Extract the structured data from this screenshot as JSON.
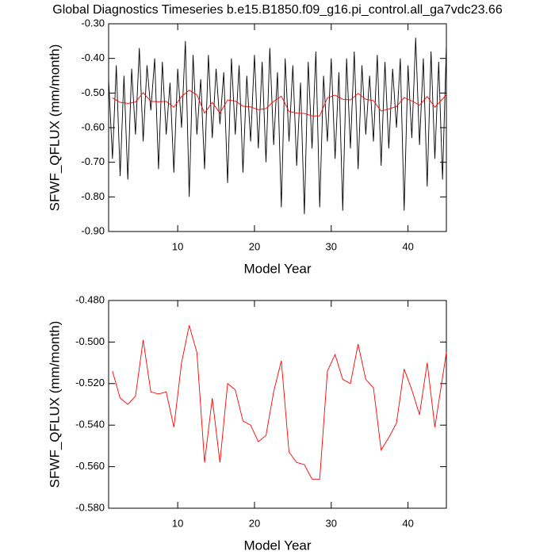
{
  "chart_data": [
    {
      "type": "line",
      "title": "Global Diagnostics Timeseries b.e15.B1850.f09_g16.pi_control.all_ga7vdc23.66",
      "x_label": "Model Year",
      "y_label": "SFWF_QFLUX (mm/month)",
      "xlim": [
        1,
        45
      ],
      "xticks": [
        10,
        20,
        30,
        40
      ],
      "ylim": [
        -0.9,
        -0.3
      ],
      "yticks": [
        {
          "value": -0.9,
          "label": "-0.90"
        },
        {
          "value": -0.8,
          "label": "-0.80"
        },
        {
          "value": -0.7,
          "label": "-0.70"
        },
        {
          "value": -0.6,
          "label": "-0.60"
        },
        {
          "value": -0.5,
          "label": "-0.50"
        },
        {
          "value": -0.4,
          "label": "-0.40"
        },
        {
          "value": -0.3,
          "label": "-0.30"
        }
      ],
      "series": [
        {
          "color": "#000000",
          "x": [
            1,
            1.5,
            2,
            2.5,
            3,
            3.5,
            4,
            4.5,
            5,
            5.5,
            6,
            6.5,
            7,
            7.5,
            8,
            8.5,
            9,
            9.5,
            10,
            10.5,
            11,
            11.5,
            12,
            12.5,
            13,
            13.5,
            14,
            14.5,
            15,
            15.5,
            16,
            16.5,
            17,
            17.5,
            18,
            18.5,
            19,
            19.5,
            20,
            20.5,
            21,
            21.5,
            22,
            22.5,
            23,
            23.5,
            24,
            24.5,
            25,
            25.5,
            26,
            26.5,
            27,
            27.5,
            28,
            28.5,
            29,
            29.5,
            30,
            30.5,
            31,
            31.5,
            32,
            32.5,
            33,
            33.5,
            34,
            34.5,
            35,
            35.5,
            36,
            36.5,
            37,
            37.5,
            38,
            38.5,
            39,
            39.5,
            40,
            40.5,
            41,
            41.5,
            42,
            42.5,
            43,
            43.5,
            44,
            44.5,
            45
          ],
          "values": [
            -0.46,
            -0.69,
            -0.42,
            -0.74,
            -0.45,
            -0.75,
            -0.43,
            -0.62,
            -0.37,
            -0.64,
            -0.42,
            -0.55,
            -0.4,
            -0.72,
            -0.41,
            -0.62,
            -0.47,
            -0.73,
            -0.43,
            -0.6,
            -0.35,
            -0.8,
            -0.39,
            -0.62,
            -0.46,
            -0.72,
            -0.39,
            -0.63,
            -0.43,
            -0.59,
            -0.44,
            -0.76,
            -0.4,
            -0.62,
            -0.42,
            -0.73,
            -0.45,
            -0.64,
            -0.39,
            -0.66,
            -0.41,
            -0.7,
            -0.37,
            -0.65,
            -0.44,
            -0.83,
            -0.4,
            -0.64,
            -0.42,
            -0.71,
            -0.47,
            -0.85,
            -0.41,
            -0.66,
            -0.38,
            -0.83,
            -0.45,
            -0.64,
            -0.4,
            -0.69,
            -0.44,
            -0.84,
            -0.4,
            -0.66,
            -0.38,
            -0.72,
            -0.42,
            -0.62,
            -0.45,
            -0.64,
            -0.39,
            -0.71,
            -0.41,
            -0.66,
            -0.43,
            -0.6,
            -0.4,
            -0.84,
            -0.42,
            -0.63,
            -0.34,
            -0.65,
            -0.4,
            -0.77,
            -0.38,
            -0.69,
            -0.41,
            -0.75,
            -0.36
          ]
        },
        {
          "color": "#ff0000",
          "x": [
            1.5,
            2.5,
            3.5,
            4.5,
            5.5,
            6.5,
            7.5,
            8.5,
            9.5,
            10.5,
            11.5,
            12.5,
            13.5,
            14.5,
            15.5,
            16.5,
            17.5,
            18.5,
            19.5,
            20.5,
            21.5,
            22.5,
            23.5,
            24.5,
            25.5,
            26.5,
            27.5,
            28.5,
            29.5,
            30.5,
            31.5,
            32.5,
            33.5,
            34.5,
            35.5,
            36.5,
            37.5,
            38.5,
            39.5,
            40.5,
            41.5,
            42.5,
            43.5,
            45
          ],
          "values": [
            -0.514,
            -0.527,
            -0.53,
            -0.526,
            -0.499,
            -0.524,
            -0.525,
            -0.524,
            -0.541,
            -0.51,
            -0.492,
            -0.505,
            -0.558,
            -0.527,
            -0.558,
            -0.52,
            -0.523,
            -0.538,
            -0.54,
            -0.548,
            -0.545,
            -0.524,
            -0.509,
            -0.553,
            -0.558,
            -0.559,
            -0.566,
            -0.566,
            -0.514,
            -0.506,
            -0.518,
            -0.52,
            -0.501,
            -0.518,
            -0.522,
            -0.552,
            -0.546,
            -0.539,
            -0.513,
            -0.523,
            -0.535,
            -0.51,
            -0.541,
            -0.505
          ]
        }
      ]
    },
    {
      "type": "line",
      "x_label": "Model Year",
      "y_label": "SFWF_QFLUX (mm/month)",
      "xlim": [
        1,
        45
      ],
      "xticks": [
        10,
        20,
        30,
        40
      ],
      "ylim": [
        -0.58,
        -0.48
      ],
      "yticks": [
        {
          "value": -0.58,
          "label": "-0.580"
        },
        {
          "value": -0.56,
          "label": "-0.560"
        },
        {
          "value": -0.54,
          "label": "-0.540"
        },
        {
          "value": -0.52,
          "label": "-0.520"
        },
        {
          "value": -0.5,
          "label": "-0.500"
        },
        {
          "value": -0.48,
          "label": "-0.480"
        }
      ],
      "series": [
        {
          "color": "#ff0000",
          "x": [
            1.5,
            2.5,
            3.5,
            4.5,
            5.5,
            6.5,
            7.5,
            8.5,
            9.5,
            10.5,
            11.5,
            12.5,
            13.5,
            14.5,
            15.5,
            16.5,
            17.5,
            18.5,
            19.5,
            20.5,
            21.5,
            22.5,
            23.5,
            24.5,
            25.5,
            26.5,
            27.5,
            28.5,
            29.5,
            30.5,
            31.5,
            32.5,
            33.5,
            34.5,
            35.5,
            36.5,
            37.5,
            38.5,
            39.5,
            40.5,
            41.5,
            42.5,
            43.5,
            45
          ],
          "values": [
            -0.514,
            -0.527,
            -0.53,
            -0.526,
            -0.499,
            -0.524,
            -0.525,
            -0.524,
            -0.541,
            -0.51,
            -0.492,
            -0.505,
            -0.558,
            -0.527,
            -0.558,
            -0.52,
            -0.523,
            -0.538,
            -0.54,
            -0.548,
            -0.545,
            -0.524,
            -0.509,
            -0.553,
            -0.558,
            -0.559,
            -0.566,
            -0.566,
            -0.514,
            -0.506,
            -0.518,
            -0.52,
            -0.501,
            -0.518,
            -0.522,
            -0.552,
            -0.546,
            -0.539,
            -0.513,
            -0.523,
            -0.535,
            -0.51,
            -0.541,
            -0.505
          ]
        }
      ]
    }
  ]
}
